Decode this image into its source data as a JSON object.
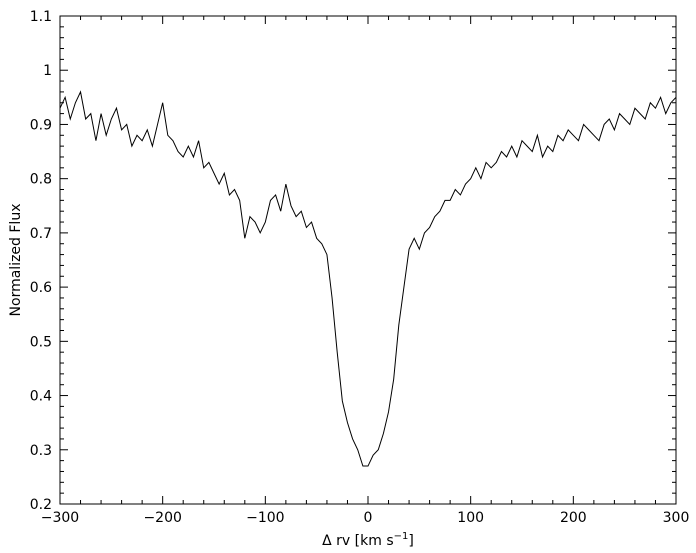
{
  "chart_data": {
    "type": "line",
    "title": "",
    "xlabel": "Δ rv [km s",
    "xlabel_sup": "−1",
    "xlabel_close": "]",
    "ylabel": "Normalized Flux",
    "xlim": [
      -300,
      300
    ],
    "ylim": [
      0.2,
      1.1
    ],
    "xticks": [
      -300,
      -200,
      -100,
      0,
      100,
      200,
      300
    ],
    "xtick_labels": [
      "−300",
      "−200",
      "−100",
      "0",
      "100",
      "200",
      "300"
    ],
    "yticks": [
      0.2,
      0.3,
      0.4,
      0.5,
      0.6,
      0.7,
      0.8,
      0.9,
      1.0,
      1.1
    ],
    "ytick_labels": [
      "0.2",
      "0.3",
      "0.4",
      "0.5",
      "0.6",
      "0.7",
      "0.8",
      "0.9",
      "1",
      "1.1"
    ],
    "grid": false,
    "line_color": "#000000",
    "series": [
      {
        "x": [
          -300,
          -295,
          -290,
          -285,
          -280,
          -275,
          -270,
          -265,
          -260,
          -255,
          -250,
          -245,
          -240,
          -235,
          -230,
          -225,
          -220,
          -215,
          -210,
          -205,
          -200,
          -195,
          -190,
          -185,
          -180,
          -175,
          -170,
          -165,
          -160,
          -155,
          -150,
          -145,
          -140,
          -135,
          -130,
          -125,
          -120,
          -115,
          -110,
          -105,
          -100,
          -95,
          -90,
          -85,
          -80,
          -75,
          -70,
          -65,
          -60,
          -55,
          -50,
          -45,
          -40,
          -35,
          -30,
          -25,
          -20,
          -15,
          -10,
          -5,
          0,
          5,
          10,
          15,
          20,
          25,
          30,
          35,
          40,
          45,
          50,
          55,
          60,
          65,
          70,
          75,
          80,
          85,
          90,
          95,
          100,
          105,
          110,
          115,
          120,
          125,
          130,
          135,
          140,
          145,
          150,
          155,
          160,
          165,
          170,
          175,
          180,
          185,
          190,
          195,
          200,
          205,
          210,
          215,
          220,
          225,
          230,
          235,
          240,
          245,
          250,
          255,
          260,
          265,
          270,
          275,
          280,
          285,
          290,
          295,
          300
        ],
        "y": [
          0.93,
          0.95,
          0.91,
          0.94,
          0.96,
          0.91,
          0.92,
          0.87,
          0.92,
          0.88,
          0.91,
          0.93,
          0.89,
          0.9,
          0.86,
          0.88,
          0.87,
          0.89,
          0.86,
          0.9,
          0.94,
          0.88,
          0.87,
          0.85,
          0.84,
          0.86,
          0.84,
          0.87,
          0.82,
          0.83,
          0.81,
          0.79,
          0.81,
          0.77,
          0.78,
          0.76,
          0.69,
          0.73,
          0.72,
          0.7,
          0.72,
          0.76,
          0.77,
          0.74,
          0.79,
          0.75,
          0.73,
          0.74,
          0.71,
          0.72,
          0.69,
          0.68,
          0.66,
          0.58,
          0.48,
          0.39,
          0.35,
          0.32,
          0.3,
          0.27,
          0.27,
          0.29,
          0.3,
          0.33,
          0.37,
          0.43,
          0.53,
          0.6,
          0.67,
          0.69,
          0.67,
          0.7,
          0.71,
          0.73,
          0.74,
          0.76,
          0.76,
          0.78,
          0.77,
          0.79,
          0.8,
          0.82,
          0.8,
          0.83,
          0.82,
          0.83,
          0.85,
          0.84,
          0.86,
          0.84,
          0.87,
          0.86,
          0.85,
          0.88,
          0.84,
          0.86,
          0.85,
          0.88,
          0.87,
          0.89,
          0.88,
          0.87,
          0.9,
          0.89,
          0.88,
          0.87,
          0.9,
          0.91,
          0.89,
          0.92,
          0.91,
          0.9,
          0.93,
          0.92,
          0.91,
          0.94,
          0.93,
          0.95,
          0.92,
          0.94,
          0.95
        ]
      }
    ]
  }
}
